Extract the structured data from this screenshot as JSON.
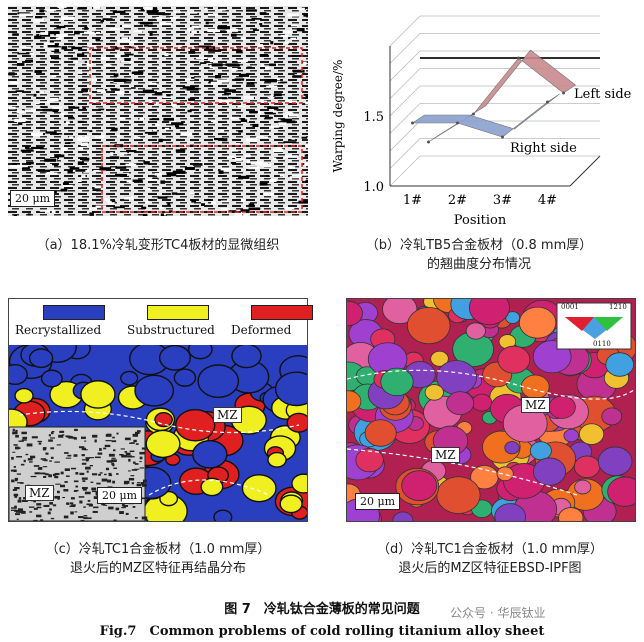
{
  "panels": {
    "a": {
      "caption": "（a）18.1%冷轧变形TC4板材的显微组织",
      "scale": "20 μm"
    },
    "b": {
      "caption_line1": "（b）冷轧TB5合金板材（0.8 mm厚）",
      "caption_line2": "的翘曲度分布情况",
      "chart_data": {
        "type": "line",
        "categories": [
          "1#",
          "2#",
          "3#",
          "4#"
        ],
        "xlabel": "Position",
        "ylabel": "Warping degree/%",
        "yticks": [
          "1.0",
          "1.5"
        ],
        "ylim": [
          1.0,
          2.0
        ],
        "series": [
          {
            "name": "Left side",
            "values": [
              1.2,
              1.4,
              1.8,
              1.55
            ]
          },
          {
            "name": "Right side",
            "values": [
              1.45,
              1.45,
              1.35,
              1.6
            ]
          }
        ],
        "colors": {
          "left": "#c98a8e",
          "right": "#8aa0cf"
        }
      }
    },
    "c": {
      "caption_line1": "（c）冷轧TC1合金板材（1.0 mm厚）",
      "caption_line2": "退火后的MZ区特征再结晶分布",
      "legend": [
        {
          "label": "Recrystallized",
          "color": "#2a3fbf"
        },
        {
          "label": "Substructured",
          "color": "#f0f020"
        },
        {
          "label": "Deformed",
          "color": "#e02020"
        }
      ],
      "mz_labels": [
        "MZ",
        "MZ"
      ],
      "scale": "20 μm"
    },
    "d": {
      "caption_line1": "（d）冷轧TC1合金板材（1.0 mm厚）",
      "caption_line2": "退火后的MZ区特征EBSD-IPF图",
      "ipf_labels": {
        "top_left": "0001",
        "top_right": "1210",
        "bottom": "0110"
      },
      "mz_labels": [
        "MZ",
        "MZ"
      ],
      "scale": "20 μm"
    }
  },
  "figure": {
    "title_cn": "图 7　冷轧钛合金薄板的常见问题",
    "title_en": "Fig.7　Common problems of cold rolling titanium alloy sheet"
  },
  "watermark": "公众号 · 华辰钛业"
}
